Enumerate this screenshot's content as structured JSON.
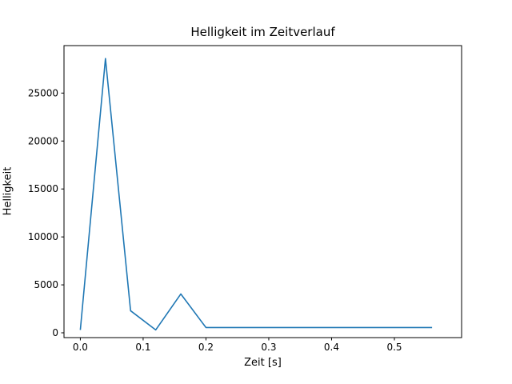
{
  "figure": {
    "background_color": "#ffffff"
  },
  "chart_data": {
    "type": "line",
    "title": "Helligkeit im Zeitverlauf",
    "xlabel": "Zeit [s]",
    "ylabel": "Helligkeit",
    "x": [
      0.0,
      0.04,
      0.08,
      0.12,
      0.16,
      0.2,
      0.24,
      0.28,
      0.32,
      0.36,
      0.4,
      0.44,
      0.48,
      0.52,
      0.56
    ],
    "y": [
      300,
      28600,
      2300,
      300,
      4050,
      550,
      550,
      550,
      550,
      550,
      550,
      550,
      550,
      550,
      550
    ],
    "series": [
      {
        "name": "Helligkeit",
        "color": "#1f77b4"
      }
    ],
    "xticks": [
      0.0,
      0.1,
      0.2,
      0.3,
      0.4,
      0.5
    ],
    "xtick_labels": [
      "0.0",
      "0.1",
      "0.2",
      "0.3",
      "0.4",
      "0.5"
    ],
    "yticks": [
      0,
      5000,
      10000,
      15000,
      20000,
      25000
    ],
    "ytick_labels": [
      "0",
      "5000",
      "10000",
      "15000",
      "20000",
      "25000"
    ],
    "xlim": [
      -0.026,
      0.607
    ],
    "ylim": [
      -500,
      29950
    ],
    "grid": false,
    "legend_position": "none",
    "line_color": "#1f77b4",
    "line_width": 1.6,
    "axis_color": "#000000",
    "text_color": "#000000"
  }
}
